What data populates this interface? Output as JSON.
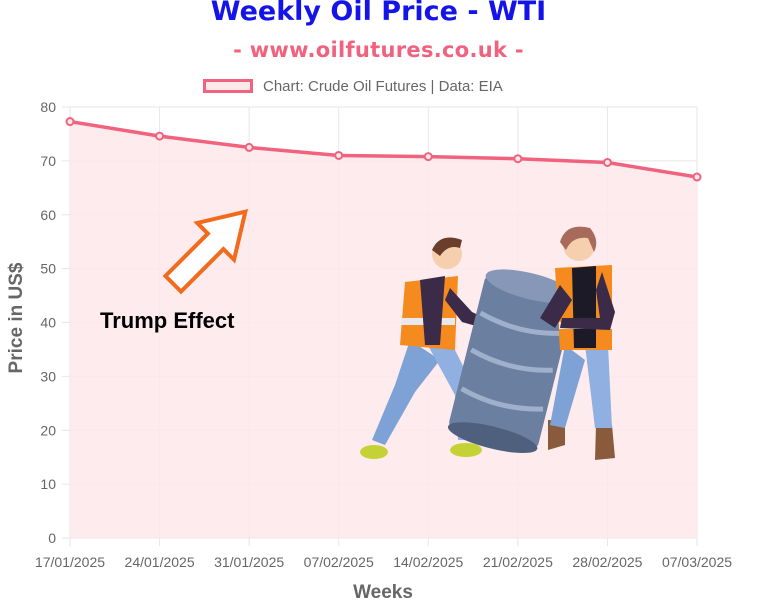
{
  "chart_data": {
    "type": "line",
    "title": "Weekly Oil Price - WTI",
    "subtitle": "- www.oilfutures.co.uk -",
    "legend": "Chart: Crude Oil Futures | Data: EIA",
    "xlabel": "Weeks",
    "ylabel": "Price in US$",
    "categories": [
      "17/01/2025",
      "24/01/2025",
      "31/01/2025",
      "07/02/2025",
      "14/02/2025",
      "21/02/2025",
      "28/02/2025",
      "07/03/2025"
    ],
    "series": [
      {
        "name": "Chart: Crude Oil Futures | Data: EIA",
        "values": [
          77.3,
          74.6,
          72.5,
          71.0,
          70.8,
          70.4,
          69.7,
          67.0
        ]
      }
    ],
    "ylim": [
      0,
      80
    ],
    "yticks": [
      0,
      10,
      20,
      30,
      40,
      50,
      60,
      70,
      80
    ],
    "grid": true,
    "legend_position": "top",
    "annotations": [
      "Trump Effect"
    ],
    "colors": {
      "line": "#f0627e",
      "fill": "#fde8ea",
      "title": "#1414e8",
      "subtitle": "#f0627e"
    }
  }
}
